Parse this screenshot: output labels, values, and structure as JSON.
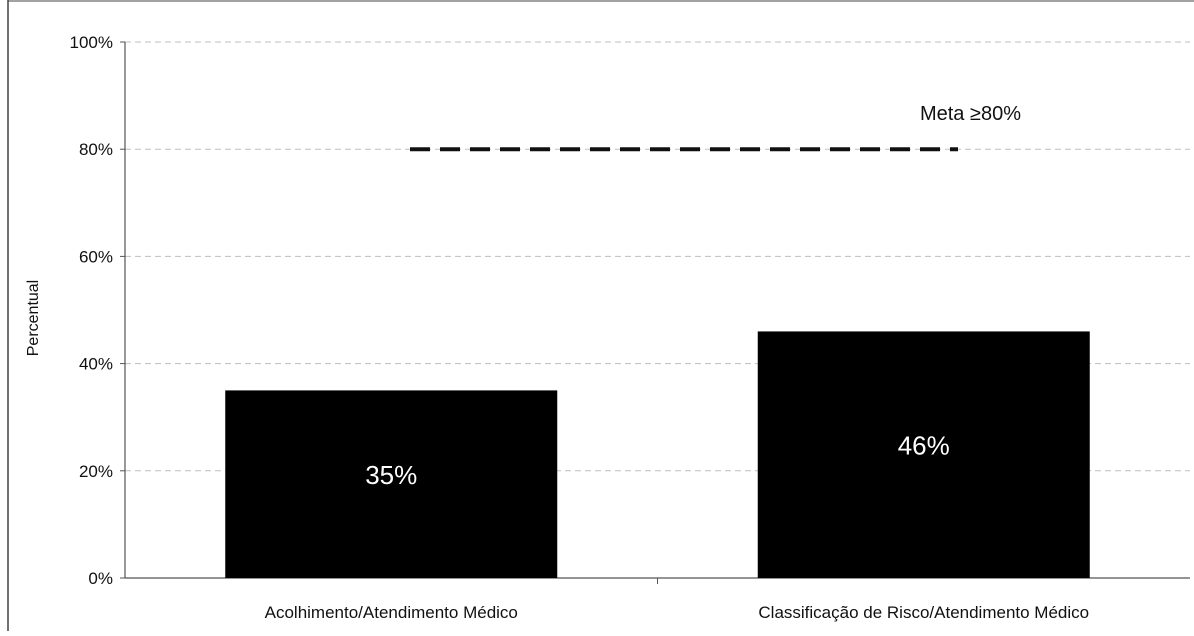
{
  "chart_data": {
    "type": "bar",
    "categories": [
      "Acolhimento/Atendimento Médico",
      "Classificação de Risco/Atendimento Médico"
    ],
    "values": [
      35,
      46
    ],
    "data_labels": [
      "35%",
      "46%"
    ],
    "ylabel": "Percentual",
    "ylim": [
      0,
      100
    ],
    "yticks": [
      0,
      20,
      40,
      60,
      80,
      100
    ],
    "ytick_labels": [
      "0%",
      "20%",
      "40%",
      "60%",
      "80%",
      "100%"
    ],
    "grid": true,
    "legend": "none",
    "reference_line": {
      "value": 80,
      "label": "Meta ≥80%",
      "style": "dashed"
    },
    "colors": {
      "bar": "#000000",
      "bar_label": "#ffffff",
      "reference_line": "#111111",
      "gridline": "#bfbfbf"
    }
  }
}
